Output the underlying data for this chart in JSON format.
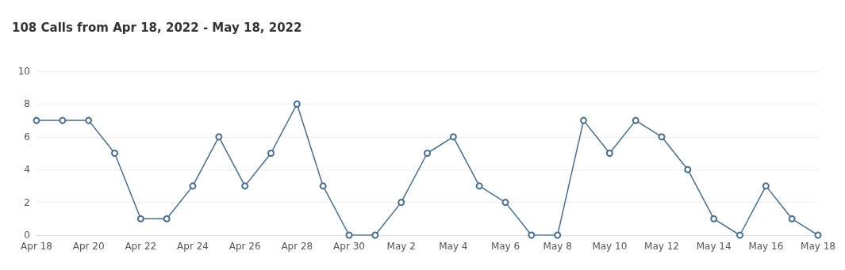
{
  "chart_data": {
    "type": "line",
    "title": "108 Calls from Apr 18, 2022 - May 18, 2022",
    "categories": [
      "Apr 18",
      null,
      "Apr 20",
      null,
      "Apr 22",
      null,
      "Apr 24",
      null,
      "Apr 26",
      null,
      "Apr 28",
      null,
      "Apr 30",
      null,
      "May 2",
      null,
      "May 4",
      null,
      "May 6",
      null,
      "May 8",
      null,
      "May 10",
      null,
      "May 12",
      null,
      "May 14",
      null,
      "May 16",
      null,
      "May 18"
    ],
    "series": [
      {
        "color": "#4a6d8c",
        "values": [
          7,
          7,
          7,
          5,
          1,
          1,
          3,
          6,
          3,
          5,
          8,
          3,
          0,
          0,
          2,
          5,
          6,
          3,
          2,
          0,
          0,
          7,
          5,
          7,
          6,
          4,
          1,
          0,
          3,
          1,
          0
        ]
      }
    ],
    "ylim": [
      0,
      10
    ],
    "yticks": [
      0,
      2,
      4,
      6,
      8,
      10
    ],
    "grid": "y",
    "marker": "circle",
    "line_style": "solid"
  }
}
